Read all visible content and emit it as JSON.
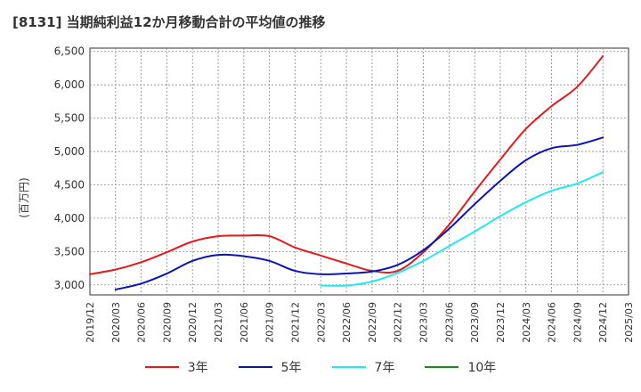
{
  "chart_data": {
    "type": "line",
    "title": "[8131]  当期純利益12か月移動合計の平均値の推移",
    "ylabel": "(百万円)",
    "xlabel": "",
    "x_ticks": [
      "2019/12",
      "2020/03",
      "2020/06",
      "2020/09",
      "2020/12",
      "2021/03",
      "2021/06",
      "2021/09",
      "2021/12",
      "2022/03",
      "2022/06",
      "2022/09",
      "2022/12",
      "2023/03",
      "2023/06",
      "2023/09",
      "2023/12",
      "2024/03",
      "2024/06",
      "2024/09",
      "2024/12",
      "2025/03"
    ],
    "y_ticks": [
      "3,000",
      "3,500",
      "4,000",
      "4,500",
      "5,000",
      "5,500",
      "6,000",
      "6,500"
    ],
    "ylim": [
      2850,
      6550
    ],
    "grid": true,
    "legend_position": "bottom",
    "series": [
      {
        "name": "3年",
        "color": "#e31a1c",
        "values": [
          3160,
          3230,
          3340,
          3490,
          3650,
          3730,
          3740,
          3730,
          3560,
          3440,
          3320,
          3210,
          3210,
          3490,
          3900,
          4400,
          4880,
          5340,
          5680,
          5970,
          6430
        ]
      },
      {
        "name": "5年",
        "color": "#0a14b4",
        "values": [
          null,
          2930,
          3020,
          3170,
          3360,
          3450,
          3430,
          3360,
          3210,
          3160,
          3170,
          3200,
          3300,
          3520,
          3840,
          4210,
          4560,
          4870,
          5050,
          5100,
          5210
        ]
      },
      {
        "name": "7年",
        "color": "#22e8f0",
        "values": [
          null,
          null,
          null,
          null,
          null,
          null,
          null,
          null,
          null,
          2990,
          2990,
          3050,
          3180,
          3360,
          3580,
          3800,
          4030,
          4240,
          4410,
          4520,
          4690
        ]
      },
      {
        "name": "10年",
        "color": "#1a8c1a",
        "values": []
      }
    ]
  }
}
